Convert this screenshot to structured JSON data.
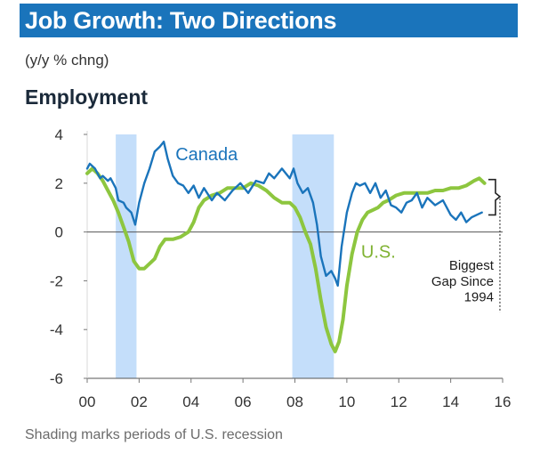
{
  "header": {
    "title": "Job Growth: Two Directions",
    "units": "(y/y % chng)",
    "panel_title": "Employment",
    "footnote": "Shading marks periods of U.S. recession"
  },
  "colors": {
    "title_bg": "#1a74bb",
    "canada": "#1a74bb",
    "us": "#8dc63f",
    "recession": "#c4defa"
  },
  "chart_data": {
    "type": "line",
    "title": "Employment",
    "ylabel": "(y/y % chng)",
    "xlim": [
      2000,
      2016
    ],
    "ylim": [
      -6,
      4
    ],
    "x_ticks": [
      2000,
      2002,
      2004,
      2006,
      2008,
      2010,
      2012,
      2014,
      2016
    ],
    "x_tick_labels": [
      "00",
      "02",
      "04",
      "06",
      "08",
      "10",
      "12",
      "14",
      "16"
    ],
    "y_ticks": [
      4,
      2,
      0,
      -2,
      -4,
      -6
    ],
    "y_tick_labels": [
      "4",
      "2",
      "0",
      "-2",
      "-4",
      "-6"
    ],
    "recessions": [
      [
        2001.1,
        2001.9
      ],
      [
        2007.9,
        2009.5
      ]
    ],
    "series": [
      {
        "name": "Canada",
        "label": "Canada",
        "points": [
          [
            2000.0,
            2.6
          ],
          [
            2000.1,
            2.8
          ],
          [
            2000.3,
            2.6
          ],
          [
            2000.5,
            2.2
          ],
          [
            2000.6,
            2.3
          ],
          [
            2000.8,
            2.1
          ],
          [
            2000.9,
            2.2
          ],
          [
            2001.1,
            1.8
          ],
          [
            2001.2,
            1.3
          ],
          [
            2001.4,
            1.2
          ],
          [
            2001.5,
            1.0
          ],
          [
            2001.7,
            0.8
          ],
          [
            2001.85,
            0.3
          ],
          [
            2002.0,
            1.2
          ],
          [
            2002.2,
            2.0
          ],
          [
            2002.4,
            2.6
          ],
          [
            2002.6,
            3.3
          ],
          [
            2002.8,
            3.5
          ],
          [
            2002.95,
            3.7
          ],
          [
            2003.1,
            3.0
          ],
          [
            2003.3,
            2.3
          ],
          [
            2003.5,
            2.0
          ],
          [
            2003.7,
            1.9
          ],
          [
            2003.9,
            1.6
          ],
          [
            2004.1,
            1.9
          ],
          [
            2004.3,
            1.4
          ],
          [
            2004.5,
            1.8
          ],
          [
            2004.8,
            1.3
          ],
          [
            2005.0,
            1.6
          ],
          [
            2005.3,
            1.3
          ],
          [
            2005.6,
            1.7
          ],
          [
            2005.9,
            2.0
          ],
          [
            2006.2,
            1.6
          ],
          [
            2006.5,
            2.1
          ],
          [
            2006.8,
            2.0
          ],
          [
            2007.0,
            2.4
          ],
          [
            2007.2,
            2.2
          ],
          [
            2007.5,
            2.6
          ],
          [
            2007.8,
            2.2
          ],
          [
            2007.95,
            2.6
          ],
          [
            2008.1,
            2.0
          ],
          [
            2008.3,
            1.6
          ],
          [
            2008.5,
            1.8
          ],
          [
            2008.7,
            1.2
          ],
          [
            2008.85,
            0.3
          ],
          [
            2009.0,
            -1.0
          ],
          [
            2009.2,
            -1.8
          ],
          [
            2009.4,
            -1.6
          ],
          [
            2009.55,
            -1.9
          ],
          [
            2009.65,
            -2.2
          ],
          [
            2009.8,
            -0.6
          ],
          [
            2010.0,
            0.8
          ],
          [
            2010.2,
            1.6
          ],
          [
            2010.35,
            2.0
          ],
          [
            2010.5,
            1.9
          ],
          [
            2010.7,
            2.0
          ],
          [
            2010.9,
            1.6
          ],
          [
            2011.1,
            2.0
          ],
          [
            2011.3,
            1.4
          ],
          [
            2011.5,
            1.7
          ],
          [
            2011.7,
            1.1
          ],
          [
            2011.9,
            1.0
          ],
          [
            2012.1,
            0.8
          ],
          [
            2012.3,
            1.2
          ],
          [
            2012.5,
            1.3
          ],
          [
            2012.7,
            1.6
          ],
          [
            2012.9,
            1.0
          ],
          [
            2013.1,
            1.4
          ],
          [
            2013.4,
            1.1
          ],
          [
            2013.7,
            1.3
          ],
          [
            2014.0,
            0.7
          ],
          [
            2014.2,
            0.5
          ],
          [
            2014.4,
            0.8
          ],
          [
            2014.6,
            0.4
          ],
          [
            2014.8,
            0.6
          ],
          [
            2015.0,
            0.7
          ],
          [
            2015.2,
            0.8
          ]
        ]
      },
      {
        "name": "U.S.",
        "label": "U.S.",
        "points": [
          [
            2000.0,
            2.4
          ],
          [
            2000.2,
            2.6
          ],
          [
            2000.4,
            2.4
          ],
          [
            2000.6,
            2.1
          ],
          [
            2000.8,
            1.7
          ],
          [
            2001.0,
            1.3
          ],
          [
            2001.2,
            0.8
          ],
          [
            2001.4,
            0.2
          ],
          [
            2001.6,
            -0.4
          ],
          [
            2001.8,
            -1.2
          ],
          [
            2002.0,
            -1.5
          ],
          [
            2002.2,
            -1.5
          ],
          [
            2002.4,
            -1.3
          ],
          [
            2002.6,
            -1.1
          ],
          [
            2002.8,
            -0.6
          ],
          [
            2003.0,
            -0.3
          ],
          [
            2003.3,
            -0.3
          ],
          [
            2003.6,
            -0.2
          ],
          [
            2003.9,
            0.0
          ],
          [
            2004.1,
            0.4
          ],
          [
            2004.3,
            1.0
          ],
          [
            2004.5,
            1.3
          ],
          [
            2004.8,
            1.5
          ],
          [
            2005.1,
            1.6
          ],
          [
            2005.4,
            1.8
          ],
          [
            2005.7,
            1.8
          ],
          [
            2006.0,
            1.8
          ],
          [
            2006.3,
            2.0
          ],
          [
            2006.6,
            1.9
          ],
          [
            2006.9,
            1.7
          ],
          [
            2007.2,
            1.4
          ],
          [
            2007.5,
            1.2
          ],
          [
            2007.8,
            1.2
          ],
          [
            2008.0,
            1.0
          ],
          [
            2008.2,
            0.6
          ],
          [
            2008.4,
            0.0
          ],
          [
            2008.6,
            -0.5
          ],
          [
            2008.8,
            -1.5
          ],
          [
            2009.0,
            -2.8
          ],
          [
            2009.2,
            -3.9
          ],
          [
            2009.4,
            -4.6
          ],
          [
            2009.55,
            -4.9
          ],
          [
            2009.7,
            -4.5
          ],
          [
            2009.85,
            -3.6
          ],
          [
            2010.0,
            -2.2
          ],
          [
            2010.2,
            -0.9
          ],
          [
            2010.4,
            0.0
          ],
          [
            2010.6,
            0.5
          ],
          [
            2010.8,
            0.8
          ],
          [
            2011.0,
            0.9
          ],
          [
            2011.2,
            1.0
          ],
          [
            2011.4,
            1.2
          ],
          [
            2011.6,
            1.3
          ],
          [
            2011.9,
            1.5
          ],
          [
            2012.2,
            1.6
          ],
          [
            2012.5,
            1.6
          ],
          [
            2012.8,
            1.6
          ],
          [
            2013.1,
            1.6
          ],
          [
            2013.4,
            1.7
          ],
          [
            2013.7,
            1.7
          ],
          [
            2014.0,
            1.8
          ],
          [
            2014.3,
            1.8
          ],
          [
            2014.6,
            1.9
          ],
          [
            2014.9,
            2.1
          ],
          [
            2015.1,
            2.2
          ],
          [
            2015.3,
            2.0
          ]
        ]
      }
    ],
    "annotation": {
      "lines": [
        "Biggest",
        "Gap Since",
        "1994"
      ]
    }
  }
}
